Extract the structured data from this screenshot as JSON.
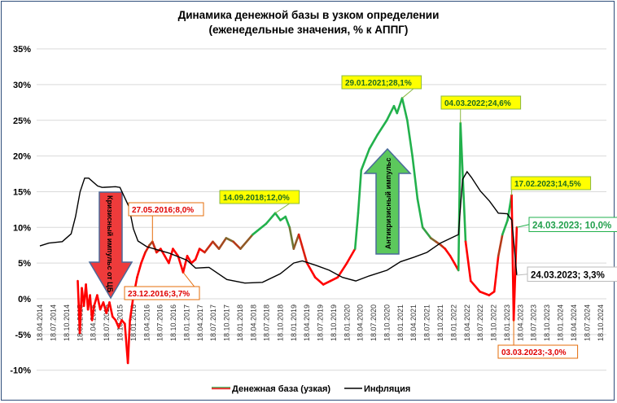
{
  "chart_data": {
    "type": "line",
    "title": "Динамика денежной базы в узком определении",
    "subtitle": "(еженедельные значения, % к АППГ)",
    "xlabel": "",
    "ylabel": "",
    "ylim": [
      -10,
      35
    ],
    "yticks": [
      -10,
      -5,
      0,
      5,
      10,
      15,
      20,
      25,
      30,
      35
    ],
    "ytick_labels": [
      "-10%",
      "-5%",
      "0%",
      "5%",
      "10%",
      "15%",
      "20%",
      "25%",
      "30%",
      "35%"
    ],
    "xticks": [
      "18.04.2014",
      "18.07.2014",
      "18.10.2014",
      "18.01.2015",
      "18.04.2015",
      "18.07.2015",
      "18.10.2015",
      "18.01.2016",
      "18.04.2016",
      "18.07.2016",
      "18.10.2016",
      "18.01.2017",
      "18.04.2017",
      "18.07.2017",
      "18.10.2017",
      "18.01.2018",
      "18.04.2018",
      "18.07.2018",
      "18.10.2018",
      "18.01.2019",
      "18.04.2019",
      "18.07.2019",
      "18.10.2019",
      "18.01.2020",
      "18.04.2020",
      "18.07.2020",
      "18.10.2020",
      "18.01.2021",
      "18.04.2021",
      "18.07.2021",
      "18.10.2021",
      "18.01.2022",
      "18.04.2022",
      "18.07.2022",
      "18.10.2022",
      "18.01.2023",
      "18.04.2023",
      "18.07.2023",
      "18.10.2023",
      "18.01.2024",
      "18.04.2024",
      "18.07.2024",
      "18.10.2024"
    ],
    "grid": true,
    "legend_position": "bottom",
    "series": [
      {
        "name": "Денежная база (узкая)",
        "color_low": "#ff0000",
        "color_high": "#22b14c",
        "points": [
          [
            "2015-01-02",
            2.5
          ],
          [
            "2015-01-16",
            -4.8
          ],
          [
            "2015-01-30",
            1.5
          ],
          [
            "2015-02-13",
            -1
          ],
          [
            "2015-02-27",
            2
          ],
          [
            "2015-03-13",
            -1.5
          ],
          [
            "2015-03-27",
            0.5
          ],
          [
            "2015-04-10",
            -3
          ],
          [
            "2015-04-24",
            -1
          ],
          [
            "2015-05-15",
            0.5
          ],
          [
            "2015-06-05",
            -1.5
          ],
          [
            "2015-06-26",
            -0.5
          ],
          [
            "2015-07-17",
            -2
          ],
          [
            "2015-08-07",
            -0.5
          ],
          [
            "2015-08-28",
            -2.5
          ],
          [
            "2015-09-18",
            -3
          ],
          [
            "2015-10-09",
            -4
          ],
          [
            "2015-10-30",
            -3
          ],
          [
            "2015-11-20",
            -3.5
          ],
          [
            "2015-12-11",
            -9
          ],
          [
            "2015-12-25",
            -3
          ],
          [
            "2016-01-15",
            0
          ],
          [
            "2016-02-12",
            3
          ],
          [
            "2016-03-11",
            5
          ],
          [
            "2016-04-08",
            6.5
          ],
          [
            "2016-05-06",
            7.5
          ],
          [
            "2016-05-27",
            8.0
          ],
          [
            "2016-06-24",
            6.5
          ],
          [
            "2016-07-22",
            7
          ],
          [
            "2016-08-19",
            6
          ],
          [
            "2016-09-16",
            5
          ],
          [
            "2016-10-14",
            7
          ],
          [
            "2016-11-18",
            6
          ],
          [
            "2016-12-23",
            3.7
          ],
          [
            "2017-01-20",
            6
          ],
          [
            "2017-02-17",
            5
          ],
          [
            "2017-03-17",
            5.5
          ],
          [
            "2017-04-14",
            7
          ],
          [
            "2017-05-19",
            6.5
          ],
          [
            "2017-07-14",
            8
          ],
          [
            "2017-08-25",
            7
          ],
          [
            "2017-10-13",
            8.5
          ],
          [
            "2017-12-01",
            8
          ],
          [
            "2018-01-19",
            7
          ],
          [
            "2018-04-13",
            9
          ],
          [
            "2018-07-13",
            10.5
          ],
          [
            "2018-09-14",
            12.0
          ],
          [
            "2018-10-19",
            11
          ],
          [
            "2018-11-23",
            11.5
          ],
          [
            "2018-12-21",
            10
          ],
          [
            "2019-01-18",
            7
          ],
          [
            "2019-02-22",
            9
          ],
          [
            "2019-04-19",
            5
          ],
          [
            "2019-06-14",
            3
          ],
          [
            "2019-08-09",
            2
          ],
          [
            "2019-09-27",
            2.5
          ],
          [
            "2019-11-15",
            3
          ],
          [
            "2020-01-17",
            5
          ],
          [
            "2020-03-13",
            7
          ],
          [
            "2020-04-03",
            12
          ],
          [
            "2020-04-24",
            18
          ],
          [
            "2020-06-19",
            21
          ],
          [
            "2020-08-14",
            23
          ],
          [
            "2020-10-16",
            25
          ],
          [
            "2020-12-04",
            27
          ],
          [
            "2020-12-25",
            26
          ],
          [
            "2021-01-29",
            28.1
          ],
          [
            "2021-03-05",
            25
          ],
          [
            "2021-04-09",
            20
          ],
          [
            "2021-05-14",
            14
          ],
          [
            "2021-06-18",
            10
          ],
          [
            "2021-08-13",
            8.5
          ],
          [
            "2021-09-17",
            8
          ],
          [
            "2021-10-22",
            7.5
          ],
          [
            "2021-11-19",
            7
          ],
          [
            "2021-12-24",
            6
          ],
          [
            "2022-01-21",
            5
          ],
          [
            "2022-02-18",
            4
          ],
          [
            "2022-03-04",
            24.6
          ],
          [
            "2022-04-08",
            8
          ],
          [
            "2022-05-13",
            2.5
          ],
          [
            "2022-07-15",
            1
          ],
          [
            "2022-09-16",
            0.5
          ],
          [
            "2022-10-21",
            1
          ],
          [
            "2022-11-18",
            6
          ],
          [
            "2022-12-16",
            9
          ],
          [
            "2023-01-20",
            11
          ],
          [
            "2023-02-17",
            14.5
          ],
          [
            "2023-03-03",
            -3.0
          ],
          [
            "2023-03-24",
            10.0
          ]
        ]
      },
      {
        "name": "Инфляция",
        "color": "#000000",
        "points": [
          [
            "2014-04-18",
            7.4
          ],
          [
            "2014-06-18",
            7.8
          ],
          [
            "2014-09-18",
            8.0
          ],
          [
            "2014-11-18",
            9.1
          ],
          [
            "2014-12-18",
            11.5
          ],
          [
            "2015-01-18",
            15
          ],
          [
            "2015-02-18",
            16.9
          ],
          [
            "2015-03-18",
            16.9
          ],
          [
            "2015-05-18",
            15.8
          ],
          [
            "2015-06-18",
            15.6
          ],
          [
            "2015-09-18",
            15.7
          ],
          [
            "2015-10-18",
            15.6
          ],
          [
            "2015-12-18",
            12.9
          ],
          [
            "2016-01-18",
            9.8
          ],
          [
            "2016-02-18",
            8.1
          ],
          [
            "2016-04-18",
            7.3
          ],
          [
            "2016-09-18",
            6.4
          ],
          [
            "2017-01-18",
            5.4
          ],
          [
            "2017-03-18",
            4.3
          ],
          [
            "2017-06-18",
            4.4
          ],
          [
            "2017-10-18",
            2.7
          ],
          [
            "2018-02-18",
            2.2
          ],
          [
            "2018-06-18",
            2.3
          ],
          [
            "2018-10-18",
            3.5
          ],
          [
            "2019-01-18",
            5.0
          ],
          [
            "2019-03-18",
            5.3
          ],
          [
            "2019-06-18",
            4.7
          ],
          [
            "2019-09-18",
            4.0
          ],
          [
            "2019-12-18",
            3.0
          ],
          [
            "2020-03-18",
            2.5
          ],
          [
            "2020-06-18",
            3.2
          ],
          [
            "2020-10-18",
            4.0
          ],
          [
            "2021-01-18",
            5.2
          ],
          [
            "2021-04-18",
            5.8
          ],
          [
            "2021-07-18",
            6.5
          ],
          [
            "2021-10-18",
            7.8
          ],
          [
            "2022-01-18",
            8.7
          ],
          [
            "2022-02-18",
            9.0
          ],
          [
            "2022-03-18",
            16.7
          ],
          [
            "2022-04-18",
            17.8
          ],
          [
            "2022-05-18",
            17.0
          ],
          [
            "2022-07-18",
            15.1
          ],
          [
            "2022-09-18",
            13.7
          ],
          [
            "2022-11-18",
            12.0
          ],
          [
            "2023-01-18",
            11.9
          ],
          [
            "2023-02-18",
            11.0
          ],
          [
            "2023-03-24",
            3.3
          ]
        ]
      }
    ],
    "annotations": [
      {
        "text": "27.05.2016;8,0%",
        "date": "2016-05-27",
        "value": 8.0,
        "style": "red"
      },
      {
        "text": "23.12.2016;3,7%",
        "date": "2016-12-23",
        "value": 3.7,
        "style": "red"
      },
      {
        "text": "14.09.2018;12,0%",
        "date": "2018-09-14",
        "value": 12.0,
        "style": "yellow"
      },
      {
        "text": "29.01.2021;28,1%",
        "date": "2021-01-29",
        "value": 28.1,
        "style": "yellow"
      },
      {
        "text": "04.03.2022;24,6%",
        "date": "2022-03-04",
        "value": 24.6,
        "style": "yellow"
      },
      {
        "text": "17.02.2023;14,5%",
        "date": "2023-02-17",
        "value": 14.5,
        "style": "yellow"
      },
      {
        "text": "24.03.2023; 10,0%",
        "date": "2023-03-24",
        "value": 10.0,
        "style": "green"
      },
      {
        "text": "24.03.2023; 3,3%",
        "date": "2023-03-24",
        "value": 3.3,
        "style": "black"
      },
      {
        "text": "03.03.2023;-3,0%",
        "date": "2023-03-03",
        "value": -3.0,
        "style": "red"
      }
    ],
    "arrows": [
      {
        "text": "Кризисный импульс от ЦБ",
        "direction": "down",
        "color": "#ee3b3b"
      },
      {
        "text": "Антикризисный импульс",
        "direction": "up",
        "color": "#5cc85c"
      }
    ]
  }
}
